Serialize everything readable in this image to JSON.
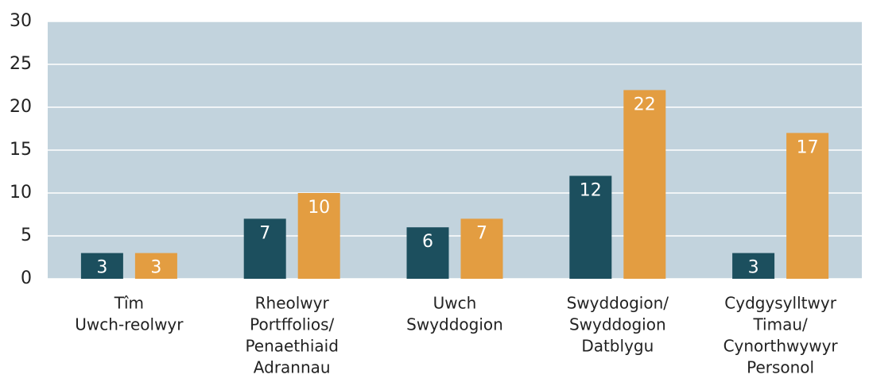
{
  "chart_data": {
    "type": "bar",
    "categories": [
      [
        "Tîm",
        "Uwch-reolwyr"
      ],
      [
        "Rheolwyr",
        "Portffolios/",
        "Penaethiaid",
        "Adrannau"
      ],
      [
        "Uwch",
        "Swyddogion"
      ],
      [
        "Swyddogion/",
        "Swyddogion",
        "Datblygu"
      ],
      [
        "Cydgysylltwyr",
        "Timau/",
        "Cynorthwywyr",
        "Personol"
      ]
    ],
    "series": [
      {
        "color": "#1c4f5e",
        "values": [
          3,
          7,
          6,
          12,
          3
        ]
      },
      {
        "color": "#e39d41",
        "values": [
          3,
          10,
          7,
          22,
          17
        ]
      }
    ],
    "ylim": [
      0,
      30
    ],
    "yticks": [
      0,
      5,
      10,
      15,
      20,
      25,
      30
    ],
    "grid": true,
    "plot_background": "#c2d3dd"
  }
}
